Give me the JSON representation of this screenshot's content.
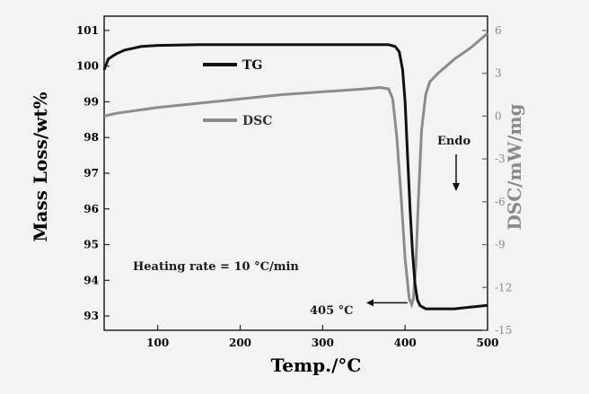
{
  "chart_data": {
    "type": "line",
    "xlabel": "Temp./°C",
    "ylabel_left": "Mass Loss/wt%",
    "ylabel_right": "DSC/mW/mg",
    "xlim": [
      35,
      500
    ],
    "ylim_left": [
      92.6,
      101.4
    ],
    "ylim_right": [
      -15,
      7
    ],
    "xticks": [
      100,
      200,
      300,
      400,
      500
    ],
    "yticks_left": [
      93,
      94,
      95,
      96,
      97,
      98,
      99,
      100,
      101
    ],
    "yticks_right": [
      -15,
      -12,
      -9,
      -6,
      -3,
      0,
      3,
      6
    ],
    "grid": false,
    "series": [
      {
        "name": "TG",
        "axis": "left",
        "color": "#111111",
        "x": [
          35,
          40,
          50,
          60,
          70,
          80,
          100,
          150,
          200,
          250,
          300,
          350,
          380,
          388,
          393,
          397,
          400,
          403,
          406,
          409,
          412,
          415,
          418,
          421,
          425,
          430,
          440,
          450,
          460,
          480,
          500
        ],
        "y": [
          99.9,
          100.2,
          100.35,
          100.45,
          100.5,
          100.55,
          100.58,
          100.6,
          100.6,
          100.6,
          100.6,
          100.6,
          100.6,
          100.55,
          100.4,
          99.9,
          99.0,
          97.5,
          96.0,
          94.8,
          93.9,
          93.45,
          93.3,
          93.25,
          93.2,
          93.2,
          93.2,
          93.2,
          93.2,
          93.25,
          93.3
        ]
      },
      {
        "name": "DSC",
        "axis": "right",
        "color": "#8c8c8c",
        "x": [
          35,
          50,
          100,
          150,
          200,
          250,
          300,
          350,
          370,
          380,
          385,
          390,
          395,
          400,
          405,
          408,
          410,
          413,
          416,
          420,
          425,
          430,
          440,
          450,
          460,
          480,
          500
        ],
        "y": [
          0.0,
          0.2,
          0.6,
          0.9,
          1.2,
          1.5,
          1.7,
          1.9,
          2.0,
          1.9,
          1.2,
          -1.5,
          -5.5,
          -10.0,
          -12.8,
          -13.2,
          -12.8,
          -10.5,
          -6.0,
          -1.0,
          1.5,
          2.4,
          3.0,
          3.5,
          4.0,
          4.8,
          5.8
        ]
      }
    ],
    "annotations": {
      "heating_rate": "Heating rate = 10 °C/min",
      "peak_label": "405 °C",
      "endo": "Endo",
      "peak": {
        "x": 405,
        "y": -13.2
      }
    }
  }
}
